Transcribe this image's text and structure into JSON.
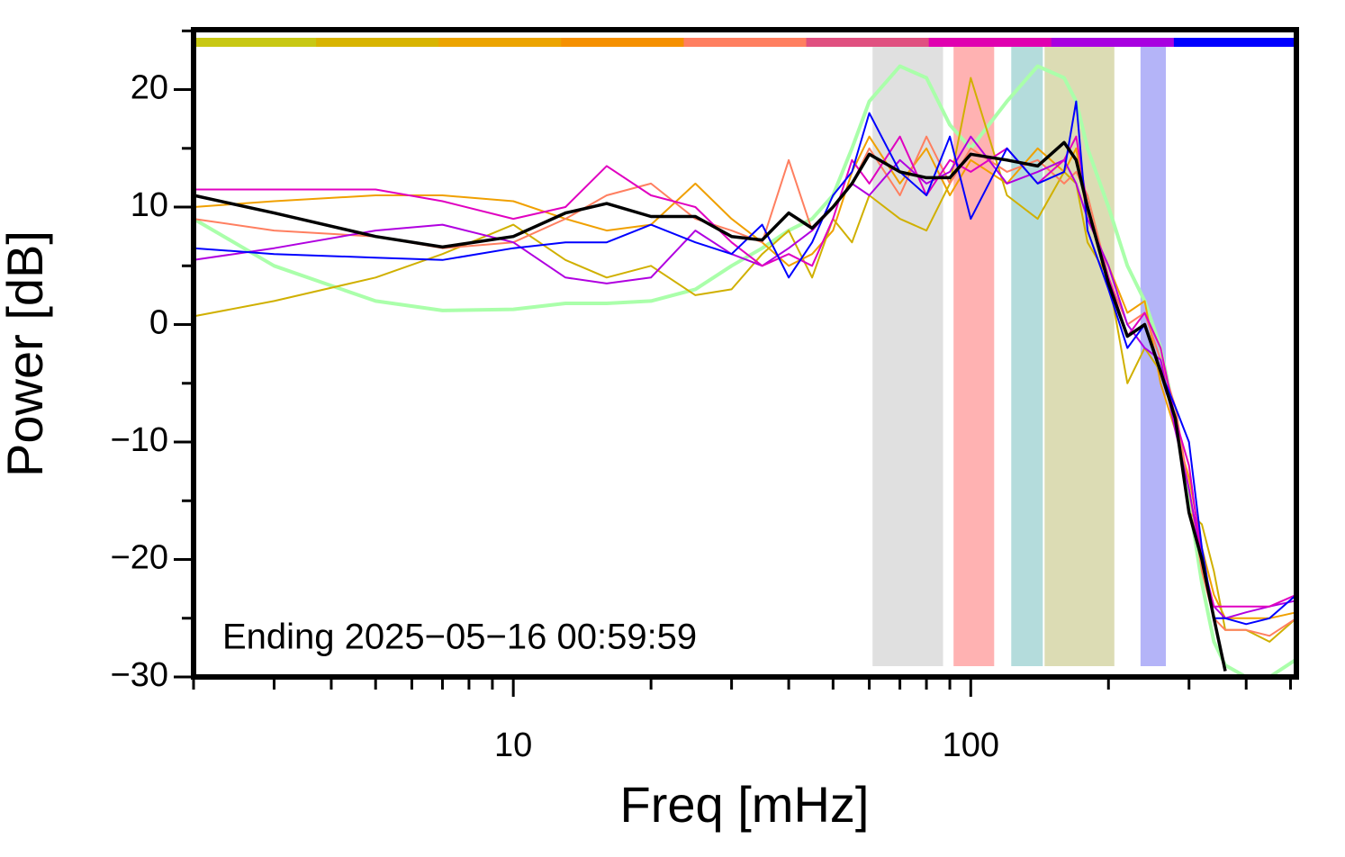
{
  "chart_data": {
    "type": "line",
    "x_label": "Freq [mHz]",
    "y_label": "Power [dB]",
    "annotation": "Ending 2025−05−16 00:59:59",
    "log_x": true,
    "xlim": [
      2,
      515
    ],
    "ylim": [
      -30,
      25.1
    ],
    "xticks": [
      10,
      100
    ],
    "xminorticks": [
      2,
      3,
      4,
      5,
      6,
      7,
      8,
      9,
      20,
      30,
      40,
      50,
      60,
      70,
      80,
      90,
      200,
      300,
      400,
      500
    ],
    "yticks": [
      {
        "value": -30,
        "label": "−30"
      },
      {
        "value": -20,
        "label": "−20"
      },
      {
        "value": -10,
        "label": "−10"
      },
      0,
      10,
      20
    ],
    "yminorticks": [
      -25,
      -15,
      -5,
      5,
      15,
      25
    ],
    "bands": [
      {
        "xlim": [
          61,
          87
        ],
        "color": "#e0e0e0"
      },
      {
        "xlim": [
          91.7,
          112.5
        ],
        "color": "#ffb2b2"
      },
      {
        "xlim": [
          122.6,
          143.7
        ],
        "color": "#b4dcdc"
      },
      {
        "xlim": [
          145,
          206
        ],
        "color": "#dcdcb4"
      },
      {
        "xlim": [
          235,
          267
        ],
        "color": "#b4b4f8"
      }
    ],
    "color_bar": [
      "#c8c814",
      "#d8b400",
      "#eca400",
      "#f59000",
      "#ff7f60",
      "#e05080",
      "#e000b0",
      "#a800e0",
      "#0000ff"
    ],
    "x": [
      2,
      3,
      5,
      7,
      10,
      13,
      16,
      20,
      25,
      30,
      35,
      40,
      45,
      50,
      55,
      60,
      70,
      80,
      90,
      100,
      120,
      140,
      160,
      170,
      180,
      200,
      220,
      240,
      260,
      280,
      300,
      320,
      340,
      360,
      400,
      450,
      515
    ],
    "series": [
      {
        "color": "#aaffaa",
        "width": 4,
        "values": [
          9,
          5,
          2,
          1.2,
          1.3,
          1.8,
          1.8,
          2,
          3,
          5,
          6.5,
          8,
          9,
          11,
          15,
          19,
          22,
          21,
          17,
          15,
          19,
          22,
          21,
          19,
          15,
          10,
          5,
          2,
          -2,
          -8,
          -15,
          -22,
          -27,
          -29,
          -30,
          -30,
          -28.5
        ]
      },
      {
        "color": "#f0a000",
        "width": 2,
        "values": [
          10,
          10.5,
          11,
          11,
          10.5,
          9,
          8,
          8.5,
          12,
          9,
          7,
          5,
          6,
          8,
          13,
          16,
          12,
          15,
          11,
          14,
          12,
          15,
          13,
          15,
          9,
          5,
          1,
          2,
          -5,
          -9,
          -13,
          -19,
          -23,
          -25,
          -25,
          -25,
          -24.5
        ]
      },
      {
        "color": "#d0b000",
        "width": 2,
        "values": [
          0.7,
          2,
          4,
          6,
          8.5,
          5.5,
          4,
          5,
          2.5,
          3,
          6,
          8,
          4,
          9,
          7,
          11,
          9,
          8,
          12,
          21,
          11,
          9,
          13,
          12,
          7,
          4,
          -5,
          -2,
          -4,
          -8,
          -16,
          -17,
          -21,
          -26,
          -26,
          -27,
          -25
        ]
      },
      {
        "color": "#ff7f60",
        "width": 2,
        "values": [
          9,
          8,
          7.5,
          6.5,
          7,
          9,
          11,
          12,
          9,
          8,
          7,
          14,
          8,
          10,
          12,
          15,
          11,
          16,
          12,
          15,
          13,
          14,
          12,
          13,
          11,
          4,
          0,
          1,
          -3,
          -7,
          -14,
          -21,
          -25,
          -26,
          -26,
          -26.5,
          -25
        ]
      },
      {
        "color": "#b000e0",
        "width": 2,
        "values": [
          5.5,
          6.5,
          8,
          8.5,
          7,
          4,
          3.5,
          4,
          8,
          6,
          5,
          6.5,
          8,
          10,
          12,
          11,
          14,
          12,
          13,
          16,
          12,
          13,
          14,
          12,
          9,
          5,
          0,
          -2,
          -3,
          -9,
          -14,
          -20,
          -24,
          -25,
          -24.5,
          -24,
          -23.5
        ]
      },
      {
        "color": "#e000c0",
        "width": 2,
        "values": [
          11.5,
          11.5,
          11.5,
          10.5,
          9,
          10,
          13.5,
          11,
          10,
          7,
          5,
          6,
          5,
          9,
          14,
          12,
          16,
          11,
          14,
          13,
          15,
          12,
          14,
          16,
          10,
          4,
          -1,
          1,
          -2,
          -8,
          -12,
          -20,
          -24,
          -24,
          -24,
          -24,
          -23
        ]
      },
      {
        "color": "#0000ff",
        "width": 2,
        "values": [
          6.5,
          6,
          5.7,
          5.5,
          6.5,
          7,
          7,
          8.5,
          7,
          6,
          8.5,
          4,
          7,
          11,
          13,
          18,
          13,
          11,
          16,
          9,
          15,
          12,
          13,
          19,
          8,
          3,
          -2,
          0,
          -4,
          -7,
          -10,
          -19,
          -25,
          -25,
          -25.5,
          -25,
          -23
        ]
      },
      {
        "color": "#000000",
        "width": 3.5,
        "values": [
          11,
          9.5,
          7.5,
          6.6,
          7.5,
          9.5,
          10.3,
          9.2,
          9.2,
          7.5,
          7.2,
          9.5,
          8.2,
          10,
          12,
          14.5,
          13,
          12.5,
          12.5,
          14.5,
          14,
          13.5,
          15.5,
          14,
          10,
          3.5,
          -1,
          0,
          -4,
          -8,
          -16,
          -20,
          -25,
          -29.5,
          null,
          null,
          null
        ]
      }
    ]
  }
}
